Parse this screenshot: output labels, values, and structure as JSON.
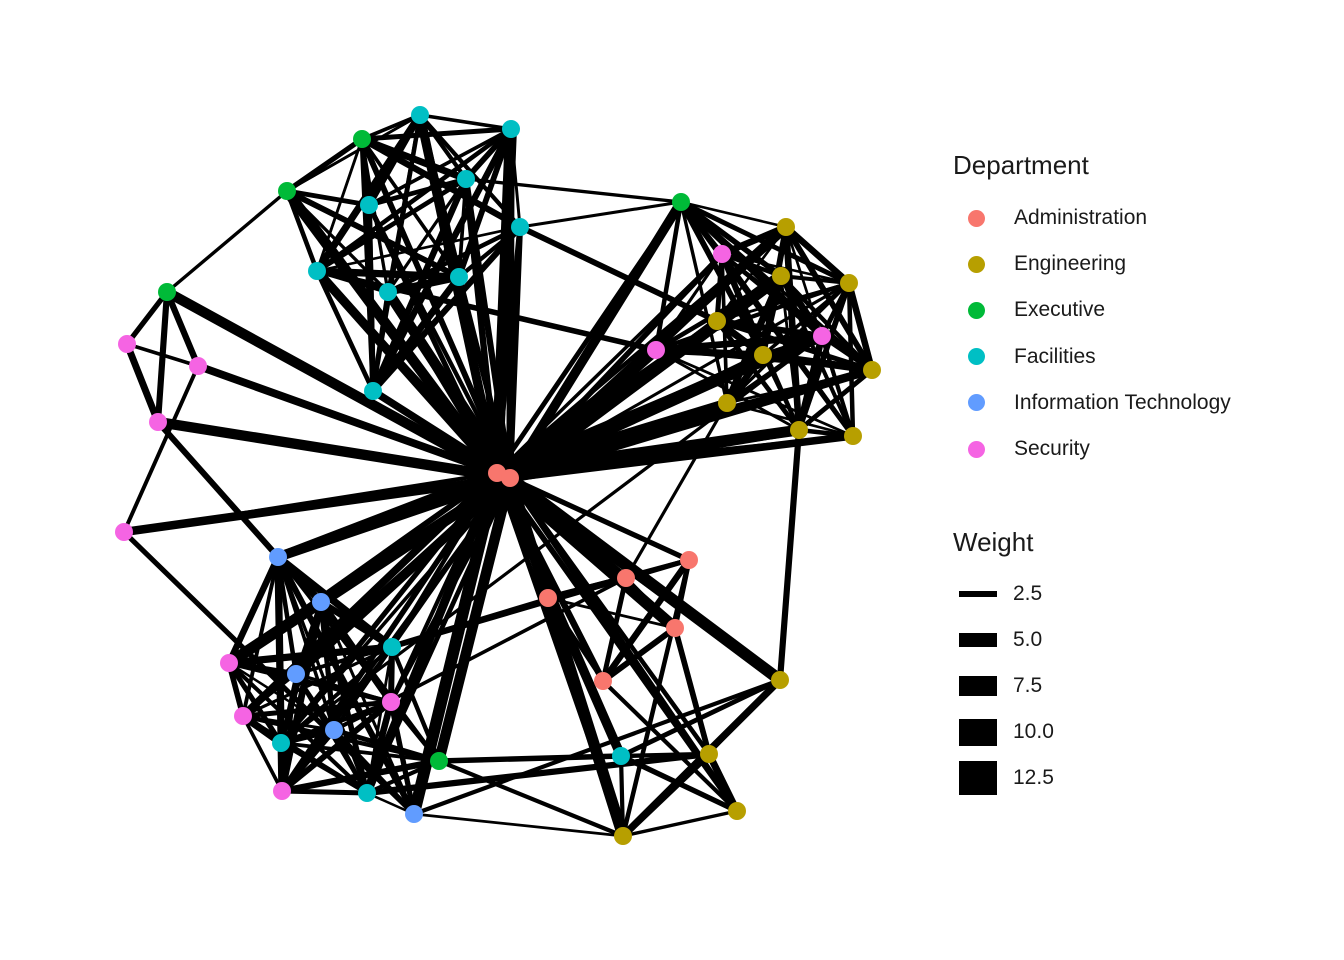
{
  "legend": {
    "department_title": "Department",
    "departments": [
      {
        "name": "Administration",
        "color": "#F8766D"
      },
      {
        "name": "Engineering",
        "color": "#B79F00"
      },
      {
        "name": "Executive",
        "color": "#00BA38"
      },
      {
        "name": "Facilities",
        "color": "#00BFC4"
      },
      {
        "name": "Information Technology",
        "color": "#619CFF"
      },
      {
        "name": "Security",
        "color": "#F564E3"
      }
    ],
    "weight_title": "Weight",
    "weights": [
      {
        "label": "2.5",
        "value": 2.5
      },
      {
        "label": "5.0",
        "value": 5.0
      },
      {
        "label": "7.5",
        "value": 7.5
      },
      {
        "label": "10.0",
        "value": 10.0
      },
      {
        "label": "12.5",
        "value": 12.5
      }
    ]
  }
}
